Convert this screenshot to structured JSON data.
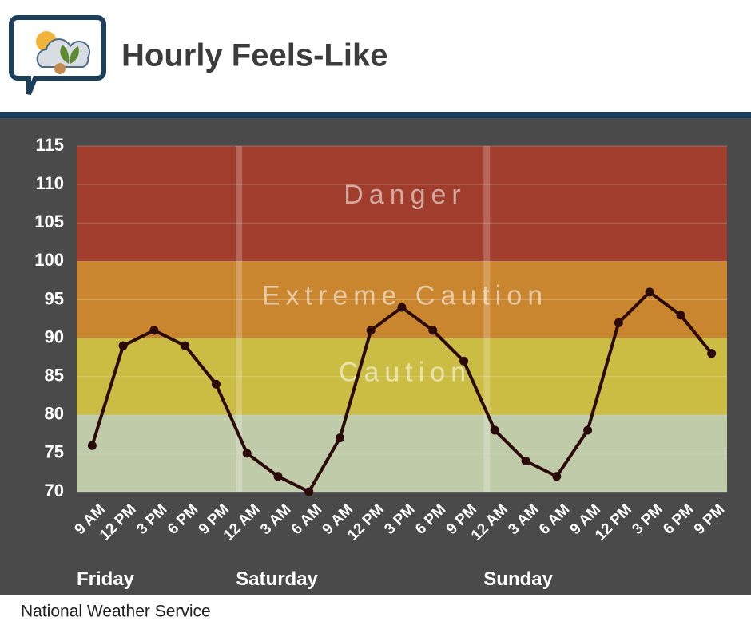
{
  "chart_data": {
    "type": "line",
    "title": "Hourly Feels-Like",
    "source": "National Weather Service",
    "categories": [
      "9 AM",
      "12 PM",
      "3 PM",
      "6 PM",
      "9 PM",
      "12 AM",
      "3 AM",
      "6 AM",
      "9 AM",
      "12 PM",
      "3 PM",
      "6 PM",
      "9 PM",
      "12 AM",
      "3 AM",
      "6 AM",
      "9 AM",
      "12 PM",
      "3 PM",
      "6 PM",
      "9 PM"
    ],
    "values": [
      76,
      89,
      91,
      89,
      84,
      75,
      72,
      70,
      77,
      91,
      94,
      91,
      87,
      78,
      74,
      72,
      78,
      92,
      96,
      93,
      88
    ],
    "color": "#2b0a0a",
    "days": [
      {
        "name": "Friday",
        "start": 0
      },
      {
        "name": "Saturday",
        "start": 5
      },
      {
        "name": "Sunday",
        "start": 13
      }
    ],
    "zones": [
      {
        "name": "Danger",
        "from": 100,
        "to": 115,
        "color": "#a03d2c"
      },
      {
        "name": "Extreme Caution",
        "from": 90,
        "to": 100,
        "color": "#c9862e"
      },
      {
        "name": "Caution",
        "from": 80,
        "to": 90,
        "color": "#cbbc44"
      },
      {
        "from": 70,
        "to": 80,
        "color": "#c0cbaa"
      }
    ],
    "ylim": [
      70,
      115
    ],
    "yticks": [
      70,
      75,
      80,
      85,
      90,
      95,
      100,
      105,
      110,
      115
    ],
    "grid": true
  }
}
